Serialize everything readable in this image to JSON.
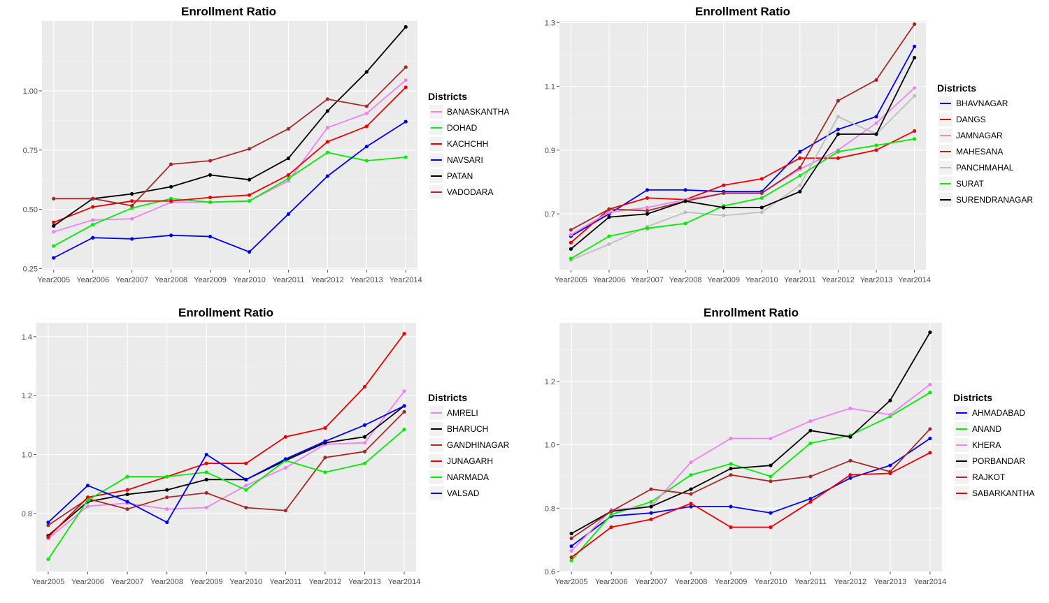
{
  "colors": {
    "panel_bg": "#EBEBEB",
    "grid_major": "#FFFFFF",
    "grid_minor": "#F5F5F5",
    "tick_text": "#4D4D4D"
  },
  "chart_data": [
    {
      "type": "line",
      "title": "Enrollment Ratio",
      "xlabel": "",
      "ylabel": "",
      "legend_title": "Districts",
      "legend_position": "right",
      "grid": true,
      "categories": [
        "Year2005",
        "Year2006",
        "Year2007",
        "Year2008",
        "Year2009",
        "Year2010",
        "Year2011",
        "Year2012",
        "Year2013",
        "Year2014"
      ],
      "ylim": [
        0.245,
        1.295
      ],
      "yticks": [
        0.25,
        0.5,
        0.75,
        1.0
      ],
      "ytick_labels": [
        "0.25",
        "0.50",
        "0.75",
        "1.00"
      ],
      "series": [
        {
          "name": "BANASKANTHA",
          "color": "#EE82EE",
          "values": [
            0.405,
            0.455,
            0.46,
            0.53,
            0.53,
            0.535,
            0.62,
            0.845,
            0.905,
            1.045
          ]
        },
        {
          "name": "DOHAD",
          "color": "#00EE00",
          "values": [
            0.345,
            0.435,
            0.505,
            0.545,
            0.53,
            0.535,
            0.63,
            0.74,
            0.705,
            0.72
          ]
        },
        {
          "name": "KACHCHH",
          "color": "#EE0000",
          "values": [
            0.445,
            0.51,
            0.535,
            0.535,
            0.55,
            0.56,
            0.645,
            0.785,
            0.85,
            1.015
          ]
        },
        {
          "name": "NAVSARI",
          "color": "#0000EE",
          "values": [
            0.295,
            0.38,
            0.375,
            0.39,
            0.385,
            0.32,
            0.48,
            0.64,
            0.765,
            0.87
          ]
        },
        {
          "name": "PATAN",
          "color": "#000000",
          "values": [
            0.43,
            0.545,
            0.565,
            0.595,
            0.645,
            0.625,
            0.715,
            0.915,
            1.08,
            1.27
          ]
        },
        {
          "name": "VADODARA",
          "color": "#A52A2A",
          "values": [
            0.545,
            0.545,
            0.515,
            0.69,
            0.705,
            0.755,
            0.84,
            0.965,
            0.935,
            1.1
          ]
        }
      ]
    },
    {
      "type": "line",
      "title": "Enrollment Ratio",
      "xlabel": "",
      "ylabel": "",
      "legend_title": "Districts",
      "legend_position": "right",
      "grid": true,
      "categories": [
        "Year2005",
        "Year2006",
        "Year2007",
        "Year2008",
        "Year2009",
        "Year2010",
        "Year2011",
        "Year2012",
        "Year2013",
        "Year2014"
      ],
      "ylim": [
        0.525,
        1.305
      ],
      "yticks": [
        0.7,
        0.9,
        1.1,
        1.3
      ],
      "ytick_labels": [
        "0.7",
        "0.9",
        "1.1",
        "1.3"
      ],
      "series": [
        {
          "name": "BHAVNAGAR",
          "color": "#0000EE",
          "values": [
            0.63,
            0.7,
            0.775,
            0.775,
            0.77,
            0.77,
            0.895,
            0.965,
            1.005,
            1.225
          ]
        },
        {
          "name": "DANGS",
          "color": "#EE0000",
          "values": [
            0.61,
            0.715,
            0.75,
            0.745,
            0.79,
            0.81,
            0.875,
            0.875,
            0.9,
            0.96
          ]
        },
        {
          "name": "JAMNAGAR",
          "color": "#EE82EE",
          "values": [
            0.635,
            0.705,
            0.72,
            0.745,
            0.765,
            0.765,
            0.84,
            0.9,
            0.985,
            1.095
          ]
        },
        {
          "name": "MAHESANA",
          "color": "#A52A2A",
          "values": [
            0.65,
            0.715,
            0.71,
            0.74,
            0.765,
            0.765,
            0.845,
            1.055,
            1.12,
            1.295
          ]
        },
        {
          "name": "PANCHMAHAL",
          "color": "#BEBEBE",
          "values": [
            0.555,
            0.605,
            0.66,
            0.705,
            0.695,
            0.705,
            0.79,
            1.005,
            0.95,
            1.07
          ]
        },
        {
          "name": "SURAT",
          "color": "#00EE00",
          "values": [
            0.56,
            0.63,
            0.655,
            0.67,
            0.725,
            0.75,
            0.82,
            0.895,
            0.915,
            0.935
          ]
        },
        {
          "name": "SURENDRANAGAR",
          "color": "#000000",
          "values": [
            0.59,
            0.69,
            0.7,
            0.74,
            0.72,
            0.72,
            0.77,
            0.95,
            0.95,
            1.19
          ]
        }
      ]
    },
    {
      "type": "line",
      "title": "Enrollment Ratio",
      "xlabel": "",
      "ylabel": "",
      "legend_title": "Districts",
      "legend_position": "right",
      "grid": true,
      "categories": [
        "Year2005",
        "Year2006",
        "Year2007",
        "Year2008",
        "Year2009",
        "Year2010",
        "Year2011",
        "Year2012",
        "Year2013",
        "Year2014"
      ],
      "ylim": [
        0.603,
        1.447
      ],
      "yticks": [
        0.8,
        1.0,
        1.2,
        1.4
      ],
      "ytick_labels": [
        "0.8",
        "1.0",
        "1.2",
        "1.4"
      ],
      "series": [
        {
          "name": "AMRELI",
          "color": "#EE82EE",
          "values": [
            0.715,
            0.825,
            0.835,
            0.815,
            0.82,
            0.895,
            0.955,
            1.035,
            1.04,
            1.215
          ]
        },
        {
          "name": "BHARUCH",
          "color": "#000000",
          "values": [
            0.725,
            0.84,
            0.865,
            0.88,
            0.915,
            0.915,
            0.98,
            1.04,
            1.06,
            1.165
          ]
        },
        {
          "name": "GANDHINAGAR",
          "color": "#A52A2A",
          "values": [
            0.76,
            0.85,
            0.815,
            0.855,
            0.87,
            0.82,
            0.81,
            0.99,
            1.01,
            1.145
          ]
        },
        {
          "name": "JUNAGARH",
          "color": "#EE0000",
          "values": [
            0.72,
            0.855,
            0.88,
            0.925,
            0.97,
            0.97,
            1.06,
            1.09,
            1.23,
            1.41
          ]
        },
        {
          "name": "NARMADA",
          "color": "#00EE00",
          "values": [
            0.645,
            0.845,
            0.925,
            0.925,
            0.94,
            0.88,
            0.98,
            0.94,
            0.97,
            1.085
          ]
        },
        {
          "name": "VALSAD",
          "color": "#0000EE",
          "values": [
            0.77,
            0.895,
            0.84,
            0.77,
            1.0,
            0.915,
            0.985,
            1.045,
            1.1,
            1.165
          ]
        }
      ]
    },
    {
      "type": "line",
      "title": "Enrollment Ratio",
      "xlabel": "",
      "ylabel": "",
      "legend_title": "Districts",
      "legend_position": "right",
      "grid": true,
      "categories": [
        "Year2005",
        "Year2006",
        "Year2007",
        "Year2008",
        "Year2009",
        "Year2010",
        "Year2011",
        "Year2012",
        "Year2013",
        "Year2014"
      ],
      "ylim": [
        0.6,
        1.385
      ],
      "yticks": [
        0.6,
        0.8,
        1.0,
        1.2
      ],
      "ytick_labels": [
        "0.6",
        "0.8",
        "1.0",
        "1.2"
      ],
      "series": [
        {
          "name": "AHMADABAD",
          "color": "#0000EE",
          "values": [
            0.68,
            0.775,
            0.785,
            0.805,
            0.805,
            0.785,
            0.83,
            0.895,
            0.935,
            1.02
          ]
        },
        {
          "name": "ANAND",
          "color": "#00EE00",
          "values": [
            0.635,
            0.78,
            0.82,
            0.905,
            0.94,
            0.9,
            1.005,
            1.03,
            1.09,
            1.165
          ]
        },
        {
          "name": "KHERA",
          "color": "#EE82EE",
          "values": [
            0.665,
            0.795,
            0.805,
            0.945,
            1.02,
            1.02,
            1.075,
            1.115,
            1.095,
            1.19
          ]
        },
        {
          "name": "PORBANDAR",
          "color": "#000000",
          "values": [
            0.72,
            0.79,
            0.805,
            0.86,
            0.925,
            0.935,
            1.045,
            1.025,
            1.14,
            1.355
          ]
        },
        {
          "name": "RAJKOT",
          "color": "#A52A2A",
          "values": [
            0.705,
            0.79,
            0.86,
            0.845,
            0.905,
            0.885,
            0.9,
            0.95,
            0.915,
            1.05
          ]
        },
        {
          "name": "SABARKANTHA",
          "color": "#EE0000",
          "values": [
            0.645,
            0.74,
            0.765,
            0.815,
            0.74,
            0.74,
            0.82,
            0.905,
            0.91,
            0.975
          ]
        }
      ]
    }
  ]
}
